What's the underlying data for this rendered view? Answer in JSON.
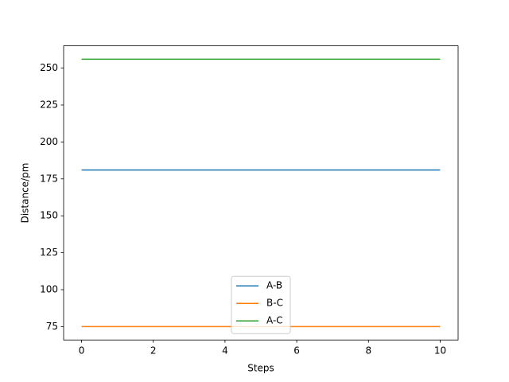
{
  "chart_data": {
    "type": "line",
    "x_label": "Steps",
    "y_label": "Distance/pm",
    "x": [
      0,
      1,
      2,
      3,
      4,
      5,
      6,
      7,
      8,
      9,
      10
    ],
    "series": [
      {
        "name": "A-B",
        "color": "#1f77b4",
        "values": [
          181,
          181,
          181,
          181,
          181,
          181,
          181,
          181,
          181,
          181,
          181
        ]
      },
      {
        "name": "B-C",
        "color": "#ff7f0e",
        "values": [
          75,
          75,
          75,
          75,
          75,
          75,
          75,
          75,
          75,
          75,
          75
        ]
      },
      {
        "name": "A-C",
        "color": "#2ca02c",
        "values": [
          256,
          256,
          256,
          256,
          256,
          256,
          256,
          256,
          256,
          256,
          256
        ]
      }
    ],
    "xlim": [
      -0.5,
      10.5
    ],
    "xticks": [
      0,
      2,
      4,
      6,
      8,
      10
    ],
    "ylim": [
      65.95,
      265.05
    ],
    "yticks": [
      75,
      100,
      125,
      150,
      175,
      200,
      225,
      250
    ],
    "legend": "lower center"
  }
}
